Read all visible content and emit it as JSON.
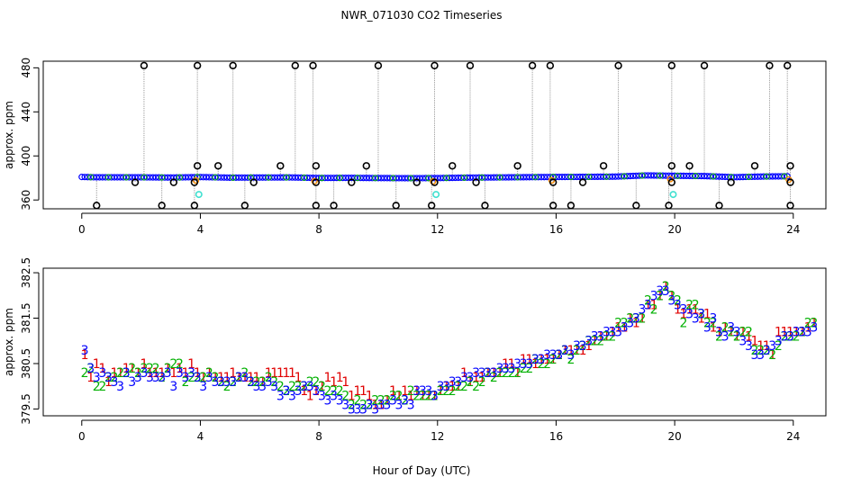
{
  "title": "NWR_071030  CO2 Timeseries",
  "colors": {
    "axis": "#000000",
    "ring": "#000000",
    "mean": "#0000ff",
    "cal": "#40e0d0",
    "tank1": "#e00000",
    "tank2": "#00b000",
    "tank3": "#0000ff",
    "orange": "#ff8c00",
    "line": "#999999"
  },
  "chart_data": [
    {
      "type": "scatter",
      "title": "",
      "xlabel": "",
      "ylabel": "approx. ppm",
      "xlim": [
        -1.3,
        25.1
      ],
      "ylim": [
        352,
        486
      ],
      "xticks": [
        0,
        4,
        8,
        12,
        16,
        20,
        24
      ],
      "xtick_labels": [
        "0",
        "4",
        "8",
        "12",
        "16",
        "20",
        "24"
      ],
      "yticks": [
        360,
        400,
        440,
        480
      ],
      "ytick_labels": [
        "360",
        "400",
        "440",
        "480"
      ],
      "series": [
        {
          "name": "baseline",
          "color": "#0000ff",
          "points": [
            [
              0.0,
              380.9
            ],
            [
              0.5,
              380.6
            ],
            [
              1.0,
              380.6
            ],
            [
              2.0,
              380.6
            ],
            [
              3.0,
              380.4
            ],
            [
              4.0,
              380.8
            ],
            [
              5.0,
              380.3
            ],
            [
              6.0,
              380.4
            ],
            [
              7.0,
              380.5
            ],
            [
              8.0,
              380.0
            ],
            [
              9.0,
              380.1
            ],
            [
              10.0,
              379.9
            ],
            [
              11.0,
              379.8
            ],
            [
              12.0,
              379.9
            ],
            [
              13.0,
              380.3
            ],
            [
              14.0,
              380.5
            ],
            [
              15.0,
              380.7
            ],
            [
              16.0,
              380.9
            ],
            [
              17.0,
              381.0
            ],
            [
              18.0,
              381.2
            ],
            [
              19.0,
              382.3
            ],
            [
              20.0,
              382.0
            ],
            [
              21.0,
              381.7
            ],
            [
              22.0,
              380.7
            ],
            [
              23.0,
              381.3
            ],
            [
              23.7,
              381.5
            ]
          ]
        },
        {
          "name": "high spikes",
          "color": "#000000",
          "x": [
            2.1,
            3.9,
            5.1,
            7.2,
            7.8,
            10.0,
            11.9,
            13.1,
            15.2,
            15.8,
            18.1,
            19.9,
            21.0,
            23.2,
            23.8
          ],
          "y": [
            482,
            482,
            482,
            482,
            482,
            482,
            482,
            482,
            482,
            482,
            482,
            482,
            482,
            482,
            482
          ]
        },
        {
          "name": "low spikes",
          "color": "#000000",
          "x": [
            0.5,
            2.7,
            3.8,
            5.5,
            7.9,
            8.5,
            10.6,
            11.8,
            13.6,
            15.9,
            16.5,
            18.7,
            19.8,
            21.5,
            23.9
          ],
          "y": [
            355,
            355,
            355,
            355,
            355,
            355,
            355,
            355,
            355,
            355,
            355,
            355,
            355,
            355,
            355
          ]
        },
        {
          "name": "mid points",
          "color": "#000000",
          "x": [
            3.9,
            4.6,
            6.7,
            7.9,
            9.6,
            12.5,
            14.7,
            17.6,
            19.9,
            20.5,
            22.7,
            23.9
          ],
          "y": [
            391,
            391,
            391,
            391,
            391,
            391,
            391,
            391,
            391,
            391,
            391,
            391
          ]
        },
        {
          "name": "near-baseline rings",
          "color": "#000000",
          "x": [
            1.8,
            3.1,
            3.8,
            5.8,
            7.9,
            9.1,
            11.3,
            11.9,
            13.3,
            15.9,
            16.9,
            19.9,
            21.9,
            23.9
          ],
          "y": [
            376,
            376,
            376,
            376,
            376,
            376,
            376,
            376,
            376,
            376,
            376,
            376,
            376,
            376
          ]
        },
        {
          "name": "calibration",
          "color": "#40e0d0",
          "x": [
            3.95,
            11.95,
            19.95
          ],
          "y": [
            365,
            365,
            365
          ]
        }
      ]
    },
    {
      "type": "scatter",
      "title": "",
      "xlabel": "Hour of Day (UTC)",
      "ylabel": "approx. ppm",
      "xlim": [
        -1.3,
        25.1
      ],
      "ylim": [
        379.35,
        382.6
      ],
      "xticks": [
        0,
        4,
        8,
        12,
        16,
        20,
        24
      ],
      "xtick_labels": [
        "0",
        "4",
        "8",
        "12",
        "16",
        "20",
        "24"
      ],
      "yticks": [
        379.5,
        380.5,
        381.5,
        382.5
      ],
      "ytick_labels": [
        "379.5",
        "380.5",
        "381.5",
        "382.5"
      ],
      "series": [
        {
          "name": "1",
          "color": "#e00000",
          "label": "1",
          "x_start": 0.1,
          "x_step": 0.2,
          "y": [
            380.7,
            380.2,
            380.5,
            380.4,
            380.1,
            380.3,
            380.3,
            380.4,
            380.4,
            380.3,
            380.5,
            380.3,
            380.3,
            380.3,
            380.4,
            380.3,
            380.4,
            380.3,
            380.5,
            380.3,
            380.2,
            380.3,
            380.2,
            380.2,
            380.2,
            380.3,
            380.2,
            380.2,
            380.2,
            380.2,
            380.1,
            380.3,
            380.3,
            380.3,
            380.3,
            380.3,
            380.2,
            379.9,
            379.8,
            379.9,
            380.0,
            380.2,
            380.1,
            380.2,
            380.1,
            379.8,
            379.9,
            379.9,
            379.8,
            379.6,
            379.6,
            379.7,
            379.9,
            379.8,
            379.9,
            379.8,
            379.9,
            379.8,
            379.8,
            379.8,
            379.9,
            380.0,
            380.0,
            380.0,
            380.3,
            380.1,
            380.2,
            380.2,
            380.3,
            380.3,
            380.3,
            380.5,
            380.5,
            380.3,
            380.6,
            380.6,
            380.5,
            380.6,
            380.6,
            380.6,
            380.7,
            380.8,
            380.8,
            380.8,
            380.8,
            380.9,
            381.0,
            381.1,
            381.1,
            381.2,
            381.3,
            381.3,
            381.5,
            381.4,
            381.5,
            381.8,
            381.8,
            382.0,
            382.2,
            382.0,
            381.7,
            381.6,
            381.7,
            381.7,
            381.5,
            381.6,
            381.3,
            381.2,
            381.3,
            381.2,
            381.1,
            381.2,
            381.1,
            381.0,
            380.9,
            380.9,
            380.7,
            381.2,
            381.2,
            381.2,
            381.2,
            381.2,
            381.3,
            381.4
          ]
        },
        {
          "name": "2",
          "color": "#00b000",
          "label": "2",
          "x_start": 0.1,
          "x_step": 0.2,
          "y": [
            380.3,
            380.4,
            380.0,
            380.0,
            380.2,
            380.2,
            380.3,
            380.3,
            380.4,
            380.3,
            380.4,
            380.4,
            380.4,
            380.2,
            380.4,
            380.5,
            380.5,
            380.1,
            380.2,
            380.2,
            380.2,
            380.3,
            380.2,
            380.1,
            380.0,
            380.1,
            380.2,
            380.3,
            380.1,
            380.1,
            380.1,
            380.2,
            380.1,
            380.0,
            379.9,
            380.0,
            380.0,
            380.0,
            380.1,
            380.1,
            380.0,
            379.9,
            379.9,
            379.9,
            379.8,
            379.6,
            379.7,
            379.6,
            379.6,
            379.7,
            379.7,
            379.7,
            379.8,
            379.8,
            379.7,
            379.9,
            379.8,
            379.8,
            379.8,
            379.8,
            379.9,
            379.9,
            379.9,
            380.0,
            380.0,
            380.1,
            380.0,
            380.1,
            380.3,
            380.2,
            380.3,
            380.3,
            380.3,
            380.3,
            380.4,
            380.4,
            380.6,
            380.5,
            380.5,
            380.6,
            380.7,
            380.8,
            380.6,
            380.8,
            380.9,
            381.0,
            381.0,
            381.0,
            381.1,
            381.1,
            381.4,
            381.4,
            381.5,
            381.5,
            381.5,
            381.9,
            381.7,
            382.0,
            382.2,
            382.0,
            381.9,
            381.4,
            381.8,
            381.8,
            381.6,
            381.4,
            381.4,
            381.1,
            381.3,
            381.2,
            381.1,
            381.2,
            381.2,
            380.8,
            380.8,
            380.8,
            380.7,
            380.9,
            381.1,
            381.1,
            381.1,
            381.2,
            381.4,
            381.4
          ]
        },
        {
          "name": "3",
          "color": "#0000ff",
          "label": "3",
          "x_start": 0.1,
          "x_step": 0.2,
          "y": [
            380.8,
            380.4,
            380.2,
            380.3,
            380.2,
            380.1,
            380.0,
            380.3,
            380.1,
            380.2,
            380.3,
            380.2,
            380.2,
            380.2,
            380.3,
            380.0,
            380.3,
            380.2,
            380.3,
            380.2,
            380.0,
            380.2,
            380.1,
            380.1,
            380.1,
            380.1,
            380.2,
            380.2,
            380.1,
            380.0,
            380.0,
            380.1,
            380.0,
            379.8,
            379.9,
            379.8,
            379.9,
            380.0,
            380.0,
            379.9,
            379.8,
            379.7,
            379.8,
            379.7,
            379.6,
            379.5,
            379.5,
            379.5,
            379.6,
            379.5,
            379.6,
            379.6,
            379.7,
            379.6,
            379.7,
            379.6,
            379.9,
            379.9,
            379.9,
            379.8,
            380.0,
            380.0,
            380.1,
            380.1,
            380.2,
            380.2,
            380.3,
            380.3,
            380.3,
            380.3,
            380.4,
            380.4,
            380.4,
            380.5,
            380.5,
            380.5,
            380.6,
            380.6,
            380.7,
            380.7,
            380.7,
            380.8,
            380.7,
            380.9,
            380.9,
            381.0,
            381.1,
            381.1,
            381.2,
            381.2,
            381.2,
            381.3,
            381.4,
            381.5,
            381.7,
            381.8,
            382.0,
            382.1,
            382.1,
            381.9,
            381.8,
            381.7,
            381.6,
            381.5,
            381.6,
            381.3,
            381.5,
            381.2,
            381.1,
            381.3,
            381.2,
            381.0,
            380.9,
            380.7,
            380.7,
            380.8,
            380.9,
            381.0,
            381.1,
            381.1,
            381.2,
            381.2,
            381.2,
            381.3
          ]
        }
      ]
    }
  ]
}
